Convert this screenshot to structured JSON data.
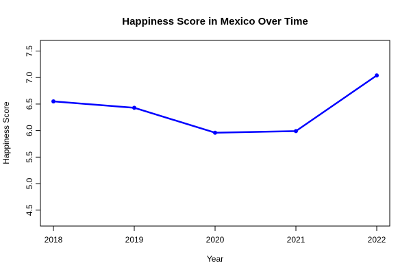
{
  "chart_data": {
    "type": "line",
    "title": "Happiness Score in Mexico Over Time",
    "xlabel": "Year",
    "ylabel": "Happiness Score",
    "x": [
      2018,
      2019,
      2020,
      2021,
      2022
    ],
    "x_tick_labels": [
      "2018",
      "2019",
      "2020",
      "2021",
      "2022"
    ],
    "series": [
      {
        "values": [
          6.55,
          6.43,
          5.96,
          5.99,
          7.04
        ]
      }
    ],
    "y_ticks": [
      4.5,
      5.0,
      5.5,
      6.0,
      6.5,
      7.0,
      7.5
    ],
    "y_tick_labels": [
      "4.5",
      "5.0",
      "5.5",
      "6.0",
      "6.5",
      "7.0",
      "7.5"
    ],
    "ylim": [
      4.2,
      7.7
    ],
    "xlim": [
      2018,
      2022
    ],
    "grid": false,
    "line_color": "#0000ff",
    "axis_color": "#000000"
  }
}
